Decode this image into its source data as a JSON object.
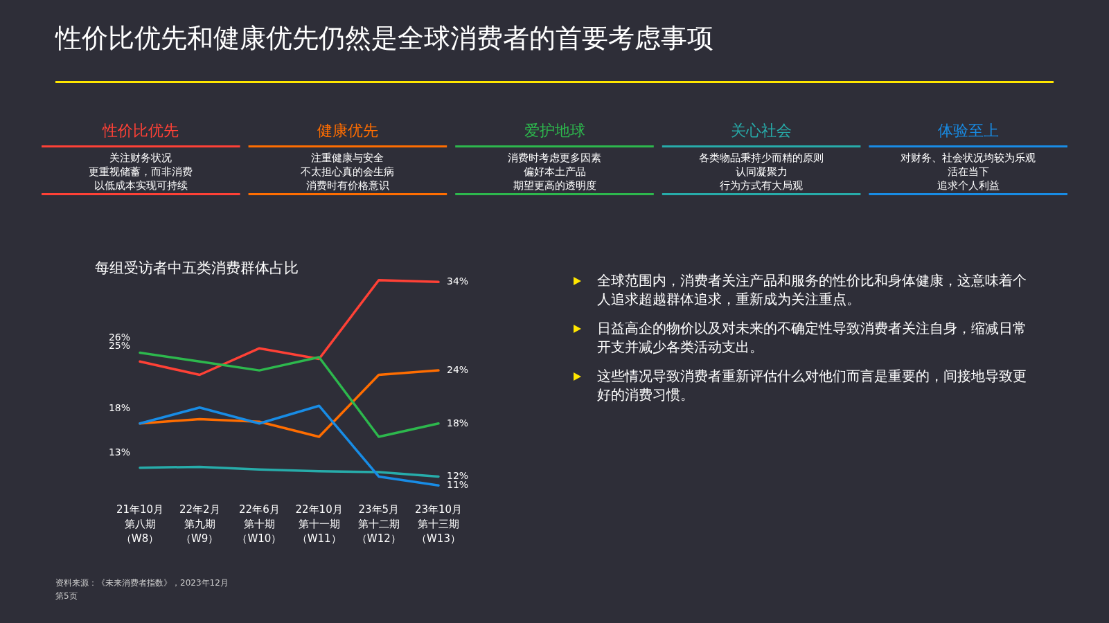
{
  "chart_data": {
    "type": "line",
    "title": "性价比优先和健康优先仍然是全球消费者的首要考虑事项",
    "subtitle": "每组受访者中五类消费群体占比",
    "categories": [
      "21年10月第八期（W8）",
      "22年2月第九期（W9）",
      "22年6月第十期（W10）",
      "22年10月第十一期（W11）",
      "23年5月第十二期（W12）",
      "23年10月第十三期（W13）"
    ],
    "series": [
      {
        "name": "性价比优先",
        "color": "#ff4136",
        "values": [
          25,
          23.5,
          26.5,
          25.3,
          34.2,
          34
        ],
        "value_labels": [
          "25%",
          null,
          null,
          null,
          null,
          "34%"
        ]
      },
      {
        "name": "健康优先",
        "color": "#ff6d00",
        "values": [
          18,
          18.5,
          18.2,
          16.5,
          23.5,
          24
        ],
        "value_labels": [
          "18%",
          null,
          null,
          null,
          null,
          "24%"
        ]
      },
      {
        "name": "爱护地球",
        "color": "#2db84d",
        "values": [
          26,
          25,
          24,
          25.5,
          16.5,
          18
        ],
        "value_labels": [
          "26%",
          null,
          null,
          null,
          null,
          "18%"
        ]
      },
      {
        "name": "关心社会",
        "color": "#27acaa",
        "values": [
          13,
          13.1,
          12.8,
          12.6,
          12.5,
          12
        ],
        "value_labels": [
          "13%",
          null,
          null,
          null,
          null,
          "12%"
        ]
      },
      {
        "name": "体验至上",
        "color": "#188ce5",
        "values": [
          18,
          19.8,
          18,
          20,
          12,
          11
        ],
        "value_labels": [
          null,
          null,
          null,
          null,
          null,
          "11%"
        ]
      }
    ],
    "tick_labels": "x",
    "legend": "top",
    "marker": "none",
    "line_style": "solid",
    "annotations": [
      "关注财务状况",
      "更重视储蓄，而非消费",
      "以低成本实现可持续",
      "注重健康与安全",
      "不太担心真的会生病",
      "消费时有价格意识",
      "消费时考虑更多因素",
      "偏好本土产品",
      "期望更高的透明度",
      "各类物品秉持少而精的原则",
      "认同凝聚力",
      "行为方式有大局观",
      "对财务、社会状况均较为乐观",
      "活在当下",
      "追求个人利益",
      "全球范围内，消费者关注产品和服务的性价比和身体健康，这意味着个人追求超越群体追求，重新成为关注重点。",
      "日益高企的物价以及对未来的不确定性导致消费者关注自身，缩减日常开支并减少各类活动支出。",
      "这些情况导致消费者重新评估什么对他们而言是重要的，间接地导致更好的消费习惯。",
      "资料来源：《未来消费者指数》，2023年12月",
      "第5页"
    ]
  }
}
